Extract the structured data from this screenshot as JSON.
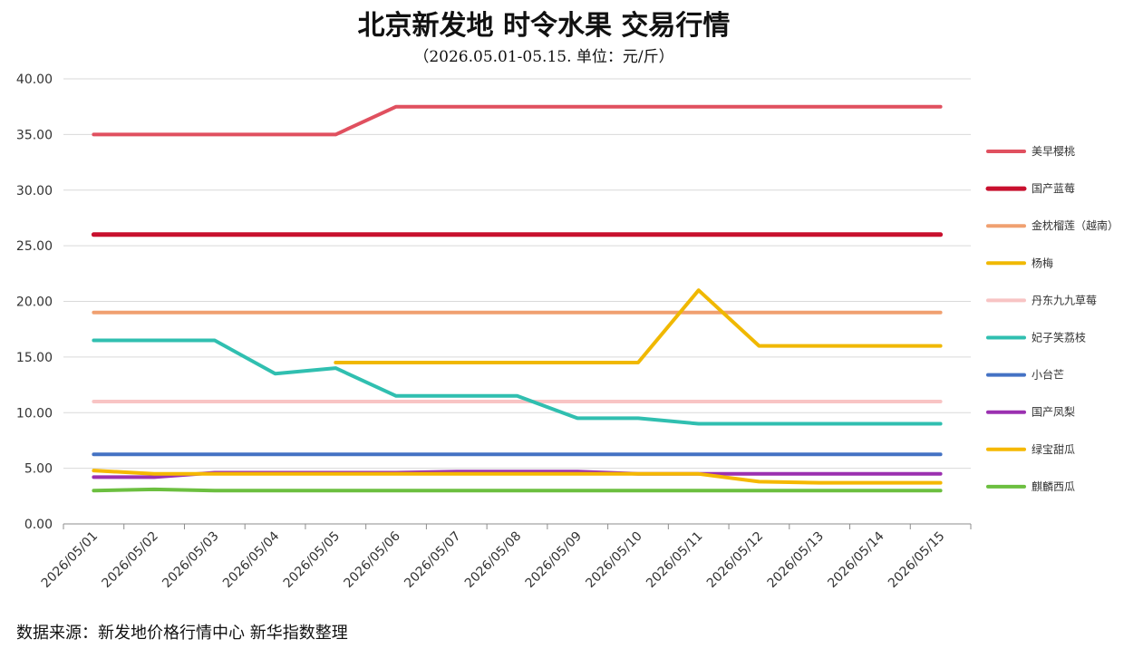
{
  "chart_data": {
    "type": "line",
    "title": "北京新发地 时令水果 交易行情",
    "subtitle": "（2026.05.01-05.15. 单位：元/斤）",
    "source": "数据来源：新发地价格行情中心 新华指数整理",
    "xlabel": "",
    "ylabel": "",
    "ylim": [
      0,
      40
    ],
    "yticks": [
      "0.00",
      "5.00",
      "10.00",
      "15.00",
      "20.00",
      "25.00",
      "30.00",
      "35.00",
      "40.00"
    ],
    "grid": true,
    "legend_position": "right",
    "categories": [
      "2026/05/01",
      "2026/05/02",
      "2026/05/03",
      "2026/05/04",
      "2026/05/05",
      "2026/05/06",
      "2026/05/07",
      "2026/05/08",
      "2026/05/09",
      "2026/05/10",
      "2026/05/11",
      "2026/05/12",
      "2026/05/13",
      "2026/05/14",
      "2026/05/15"
    ],
    "series": [
      {
        "name": "美早樱桃",
        "color": "#e0505f",
        "values": [
          35,
          35,
          35,
          35,
          35,
          37.5,
          37.5,
          37.5,
          37.5,
          37.5,
          37.5,
          37.5,
          37.5,
          37.5,
          37.5
        ]
      },
      {
        "name": "国产蓝莓",
        "color": "#c8102e",
        "values": [
          26,
          26,
          26,
          26,
          26,
          26,
          26,
          26,
          26,
          26,
          26,
          26,
          26,
          26,
          26
        ]
      },
      {
        "name": "金枕榴莲（越南）",
        "color": "#f0a070",
        "values": [
          19,
          19,
          19,
          19,
          19,
          19,
          19,
          19,
          19,
          19,
          19,
          19,
          19,
          19,
          19
        ]
      },
      {
        "name": "杨梅",
        "color": "#f0b800",
        "values": [
          null,
          null,
          null,
          null,
          14.5,
          14.5,
          14.5,
          14.5,
          14.5,
          14.5,
          21,
          16,
          16,
          16,
          16
        ]
      },
      {
        "name": "丹东九九草莓",
        "color": "#f8c4c4",
        "values": [
          11,
          11,
          11,
          11,
          11,
          11,
          11,
          11,
          11,
          11,
          11,
          11,
          11,
          11,
          11
        ]
      },
      {
        "name": "妃子笑荔枝",
        "color": "#30bfb0",
        "values": [
          16.5,
          16.5,
          16.5,
          13.5,
          14,
          11.5,
          11.5,
          11.5,
          9.5,
          9.5,
          9,
          9,
          9,
          9,
          9
        ]
      },
      {
        "name": "小台芒",
        "color": "#4472c4",
        "values": [
          6.25,
          6.25,
          6.25,
          6.25,
          6.25,
          6.25,
          6.25,
          6.25,
          6.25,
          6.25,
          6.25,
          6.25,
          6.25,
          6.25,
          6.25
        ]
      },
      {
        "name": "国产凤梨",
        "color": "#9b30b0",
        "values": [
          4.2,
          4.2,
          4.6,
          4.6,
          4.6,
          4.6,
          4.7,
          4.7,
          4.7,
          4.5,
          4.5,
          4.5,
          4.5,
          4.5,
          4.5
        ]
      },
      {
        "name": "绿宝甜瓜",
        "color": "#f5b800",
        "values": [
          4.8,
          4.5,
          4.5,
          4.5,
          4.5,
          4.5,
          4.5,
          4.5,
          4.5,
          4.5,
          4.5,
          3.8,
          3.7,
          3.7,
          3.7
        ]
      },
      {
        "name": "麒麟西瓜",
        "color": "#6cbf40",
        "values": [
          3,
          3.1,
          3,
          3,
          3,
          3,
          3,
          3,
          3,
          3,
          3,
          3,
          3,
          3,
          3
        ]
      }
    ]
  }
}
